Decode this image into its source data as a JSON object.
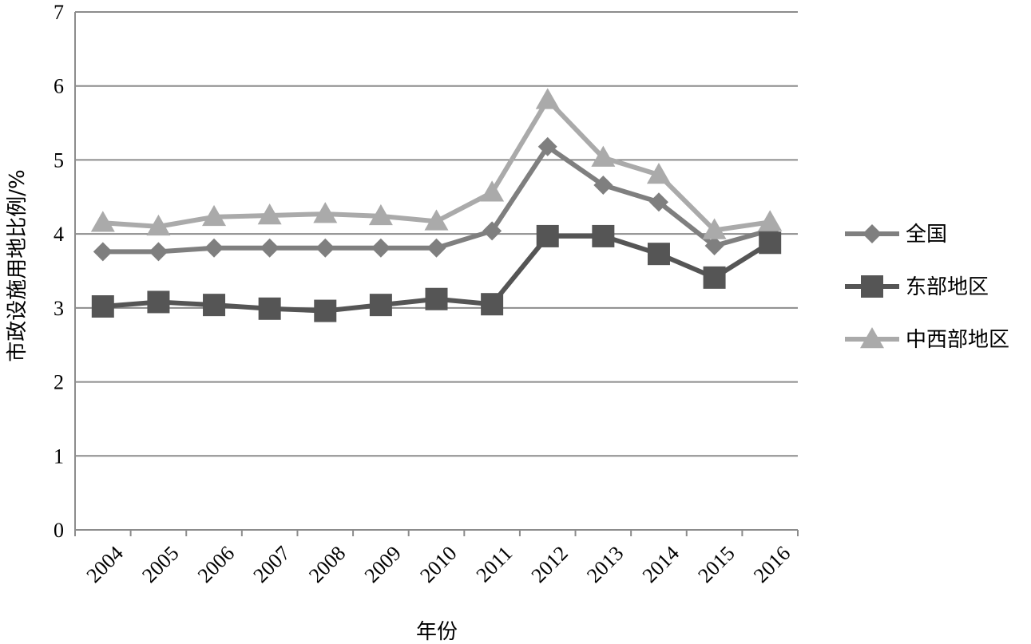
{
  "chart_data": {
    "type": "line",
    "title": "",
    "xlabel": "年份",
    "ylabel": "市政设施用地比例/%",
    "ylim": [
      0,
      7
    ],
    "yticks": [
      "0",
      "1",
      "2",
      "3",
      "4",
      "5",
      "6",
      "7"
    ],
    "categories": [
      "2004",
      "2005",
      "2006",
      "2007",
      "2008",
      "2009",
      "2010",
      "2011",
      "2012",
      "2013",
      "2014",
      "2015",
      "2016"
    ],
    "grid": true,
    "legend_position": "right",
    "series": [
      {
        "name": "全国",
        "marker": "diamond",
        "color": "#7f7f7f",
        "values": [
          3.76,
          3.76,
          3.81,
          3.81,
          3.81,
          3.81,
          3.81,
          4.04,
          5.18,
          4.66,
          4.43,
          3.84,
          4.05
        ]
      },
      {
        "name": "东部地区",
        "marker": "square",
        "color": "#555555",
        "values": [
          3.02,
          3.08,
          3.04,
          2.99,
          2.96,
          3.04,
          3.12,
          3.05,
          3.97,
          3.97,
          3.73,
          3.41,
          3.88
        ]
      },
      {
        "name": "中西部地区",
        "marker": "triangle",
        "color": "#aaaaaa",
        "values": [
          4.15,
          4.1,
          4.23,
          4.25,
          4.27,
          4.24,
          4.17,
          4.56,
          5.81,
          5.03,
          4.8,
          4.05,
          4.16
        ]
      }
    ]
  }
}
